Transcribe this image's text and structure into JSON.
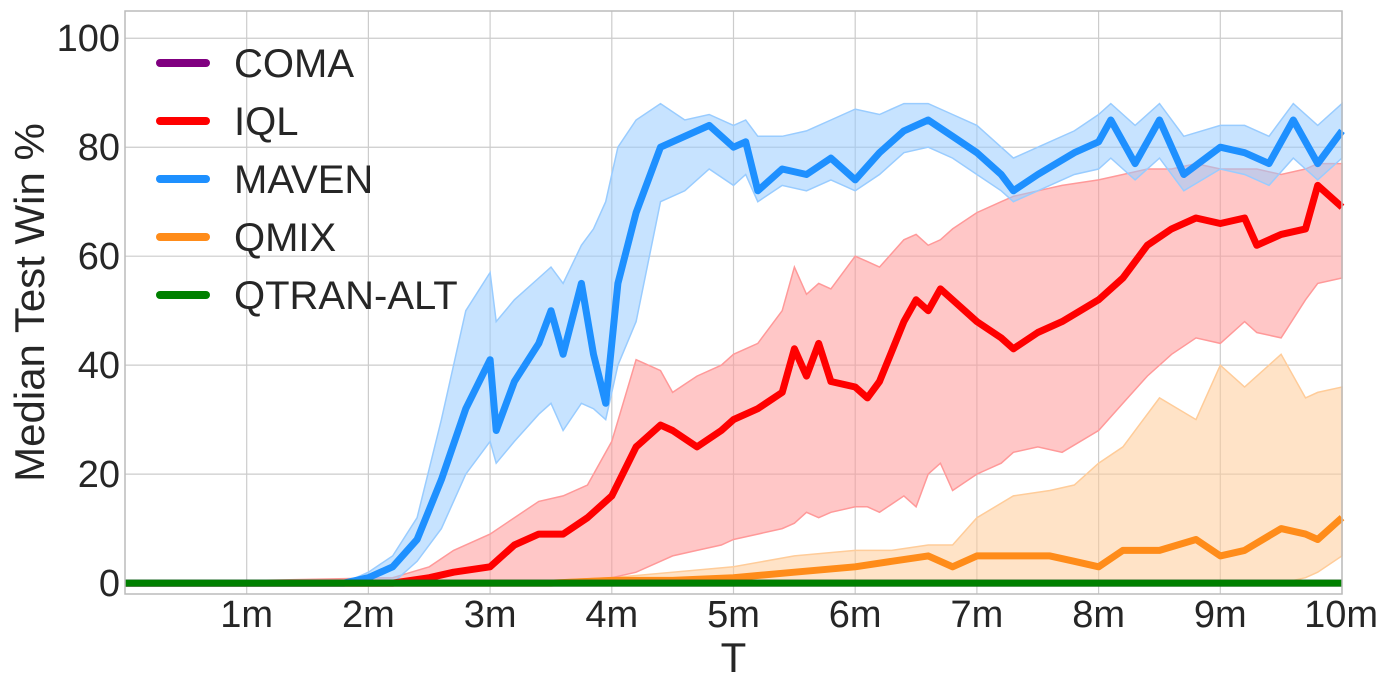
{
  "chart_data": {
    "type": "line",
    "xlabel": "T",
    "ylabel": "Median Test Win %",
    "xlim": [
      0,
      10
    ],
    "ylim": [
      -2,
      105
    ],
    "x_ticks": [
      {
        "value": 1,
        "label": "1m"
      },
      {
        "value": 2,
        "label": "2m"
      },
      {
        "value": 3,
        "label": "3m"
      },
      {
        "value": 4,
        "label": "4m"
      },
      {
        "value": 5,
        "label": "5m"
      },
      {
        "value": 6,
        "label": "6m"
      },
      {
        "value": 7,
        "label": "7m"
      },
      {
        "value": 8,
        "label": "8m"
      },
      {
        "value": 9,
        "label": "9m"
      },
      {
        "value": 10,
        "label": "10m"
      }
    ],
    "y_ticks": [
      {
        "value": 0,
        "label": "0"
      },
      {
        "value": 20,
        "label": "20"
      },
      {
        "value": 40,
        "label": "40"
      },
      {
        "value": 60,
        "label": "60"
      },
      {
        "value": 80,
        "label": "80"
      },
      {
        "value": 100,
        "label": "100"
      }
    ],
    "grid": true,
    "legend_position": "top-left",
    "series": [
      {
        "name": "COMA",
        "color": "#800080",
        "x": [
          0,
          10
        ],
        "y": [
          0,
          0
        ],
        "lower": [
          0,
          0
        ],
        "upper": [
          0,
          0
        ]
      },
      {
        "name": "IQL",
        "color": "#ff0000",
        "band_color": "#ff9999",
        "x": [
          0,
          2.2,
          2.5,
          2.7,
          3.0,
          3.2,
          3.4,
          3.6,
          3.8,
          4.0,
          4.2,
          4.4,
          4.5,
          4.7,
          4.9,
          5.0,
          5.2,
          5.4,
          5.5,
          5.6,
          5.7,
          5.8,
          6.0,
          6.1,
          6.2,
          6.4,
          6.5,
          6.6,
          6.7,
          6.8,
          7.0,
          7.2,
          7.3,
          7.5,
          7.7,
          8.0,
          8.2,
          8.4,
          8.6,
          8.8,
          9.0,
          9.2,
          9.3,
          9.5,
          9.7,
          9.8,
          10.0
        ],
        "y": [
          0,
          0,
          1,
          2,
          3,
          7,
          9,
          9,
          12,
          16,
          25,
          29,
          28,
          25,
          28,
          30,
          32,
          35,
          43,
          38,
          44,
          37,
          36,
          34,
          37,
          48,
          52,
          50,
          54,
          52,
          48,
          45,
          43,
          46,
          48,
          52,
          56,
          62,
          65,
          67,
          66,
          67,
          62,
          64,
          65,
          73,
          69
        ],
        "lower": [
          0,
          0,
          0,
          0,
          0,
          0,
          0,
          0,
          0,
          1,
          2,
          4,
          5,
          6,
          7,
          8,
          9,
          10,
          11,
          13,
          12,
          13,
          14,
          14,
          13,
          16,
          14,
          20,
          22,
          17,
          20,
          22,
          24,
          25,
          24,
          28,
          33,
          38,
          42,
          45,
          44,
          48,
          46,
          45,
          52,
          55,
          56
        ],
        "upper": [
          0,
          1,
          3,
          6,
          9,
          12,
          15,
          16,
          18,
          26,
          41,
          39,
          35,
          38,
          40,
          42,
          44,
          50,
          58,
          53,
          55,
          54,
          60,
          59,
          58,
          63,
          64,
          62,
          63,
          65,
          68,
          70,
          71,
          72,
          73,
          74,
          75,
          76,
          76,
          77,
          76,
          76,
          76,
          75,
          76,
          77,
          77
        ]
      },
      {
        "name": "MAVEN",
        "color": "#1e90ff",
        "band_color": "#99ccff",
        "x": [
          0,
          1.8,
          2.0,
          2.2,
          2.4,
          2.6,
          2.8,
          3.0,
          3.05,
          3.2,
          3.4,
          3.5,
          3.6,
          3.75,
          3.85,
          3.95,
          4.05,
          4.2,
          4.4,
          4.6,
          4.8,
          5.0,
          5.1,
          5.2,
          5.4,
          5.6,
          5.8,
          6.0,
          6.2,
          6.4,
          6.6,
          6.8,
          7.0,
          7.2,
          7.3,
          7.5,
          7.8,
          8.0,
          8.1,
          8.3,
          8.5,
          8.7,
          9.0,
          9.2,
          9.4,
          9.6,
          9.8,
          10.0
        ],
        "y": [
          0,
          0,
          1,
          3,
          8,
          19,
          32,
          41,
          28,
          37,
          44,
          50,
          42,
          55,
          42,
          33,
          55,
          68,
          80,
          82,
          84,
          80,
          81,
          72,
          76,
          75,
          78,
          74,
          79,
          83,
          85,
          82,
          79,
          75,
          72,
          75,
          79,
          81,
          85,
          77,
          85,
          75,
          80,
          79,
          77,
          85,
          77,
          83
        ],
        "lower": [
          0,
          0,
          0,
          0,
          4,
          10,
          20,
          26,
          22,
          26,
          31,
          33,
          28,
          33,
          32,
          30,
          40,
          48,
          70,
          72,
          76,
          73,
          75,
          70,
          73,
          72,
          74,
          72,
          75,
          79,
          80,
          78,
          75,
          72,
          70,
          72,
          75,
          76,
          78,
          74,
          78,
          72,
          76,
          75,
          73,
          78,
          74,
          78
        ],
        "upper": [
          0,
          0,
          2,
          5,
          12,
          30,
          50,
          57,
          48,
          52,
          56,
          58,
          55,
          62,
          65,
          70,
          80,
          85,
          88,
          85,
          86,
          84,
          85,
          82,
          82,
          83,
          85,
          87,
          86,
          88,
          88,
          86,
          84,
          80,
          78,
          80,
          83,
          86,
          88,
          84,
          88,
          82,
          84,
          84,
          82,
          88,
          84,
          88
        ]
      },
      {
        "name": "QMIX",
        "color": "#ff8c1a",
        "band_color": "#ffcc99",
        "x": [
          0,
          3.0,
          3.5,
          4.0,
          4.5,
          5.0,
          5.5,
          6.0,
          6.3,
          6.6,
          6.8,
          7.0,
          7.3,
          7.6,
          7.8,
          8.0,
          8.2,
          8.5,
          8.8,
          9.0,
          9.2,
          9.5,
          9.7,
          9.8,
          10.0
        ],
        "y": [
          0,
          0,
          0,
          0.5,
          0.5,
          1,
          2,
          3,
          4,
          5,
          3,
          5,
          5,
          5,
          4,
          3,
          6,
          6,
          8,
          5,
          6,
          10,
          9,
          8,
          12
        ],
        "lower": [
          0,
          0,
          0,
          0,
          0,
          0,
          0,
          0,
          0,
          0,
          0,
          0,
          0,
          0,
          0,
          0,
          0,
          0,
          0,
          0,
          0,
          0,
          1,
          2,
          5
        ],
        "upper": [
          0,
          0,
          0.5,
          1,
          2,
          3,
          5,
          6,
          6,
          7,
          7,
          12,
          16,
          17,
          18,
          22,
          25,
          34,
          30,
          40,
          36,
          42,
          34,
          35,
          36
        ]
      },
      {
        "name": "QTRAN-ALT",
        "color": "#008000",
        "x": [
          0,
          10
        ],
        "y": [
          0,
          0
        ],
        "lower": [
          0,
          0
        ],
        "upper": [
          0,
          0
        ]
      }
    ],
    "draw_order": [
      "QMIX",
      "IQL",
      "MAVEN",
      "COMA",
      "QTRAN-ALT"
    ]
  }
}
